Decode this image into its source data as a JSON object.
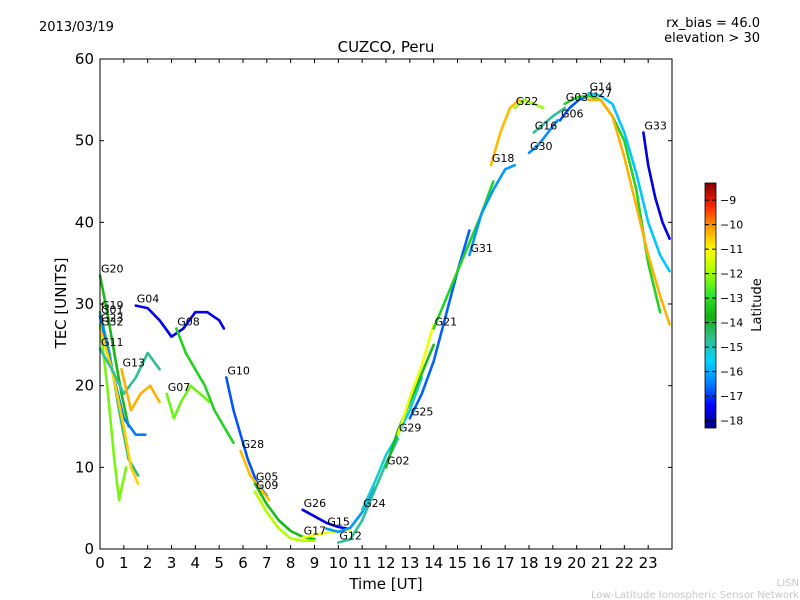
{
  "header": {
    "date": "2013/03/19",
    "rx_bias": "rx_bias = 46.0",
    "elevation": "elevation > 30"
  },
  "footer": {
    "org_short": "LISN",
    "org_long": "Low-Latitude Ionospheric Sensor Network"
  },
  "chart_data": {
    "type": "scatter",
    "title": "CUZCO, Peru",
    "xlabel": "Time [UT]",
    "ylabel": "TEC [UNITS]",
    "xlim": [
      0,
      24
    ],
    "ylim": [
      0,
      60
    ],
    "xticks": [
      "0",
      "1",
      "2",
      "3",
      "4",
      "5",
      "6",
      "7",
      "8",
      "9",
      "10",
      "11",
      "12",
      "13",
      "14",
      "15",
      "16",
      "17",
      "18",
      "19",
      "20",
      "21",
      "22",
      "23"
    ],
    "yticks": [
      "0",
      "10",
      "20",
      "30",
      "40",
      "50",
      "60"
    ],
    "colorbar": {
      "label": "Latitude",
      "min": -18.3,
      "max": -8.3,
      "ticks": [
        "-9",
        "-10",
        "-11",
        "-12",
        "-13",
        "-14",
        "-15",
        "-16",
        "-17",
        "-18"
      ],
      "colors": [
        "#00007f",
        "#0000ff",
        "#0080ff",
        "#00d4ff",
        "#30c090",
        "#12b012",
        "#2ee82e",
        "#a6ff00",
        "#ffff00",
        "#ff9c00",
        "#ff2200",
        "#7f0000"
      ]
    },
    "series": [
      {
        "name": "G20",
        "lat": -13.6,
        "points": [
          [
            0,
            33.5
          ],
          [
            0.3,
            29
          ],
          [
            0.6,
            24
          ],
          [
            0.9,
            19
          ],
          [
            1.2,
            15
          ]
        ]
      },
      {
        "name": "G19",
        "lat": -14.5,
        "points": [
          [
            0,
            29
          ],
          [
            0.4,
            24
          ],
          [
            0.8,
            17
          ],
          [
            1.2,
            11
          ],
          [
            1.6,
            9
          ]
        ]
      },
      {
        "name": "G01",
        "lat": -16.5,
        "points": [
          [
            0,
            28.5
          ],
          [
            0.5,
            22
          ],
          [
            1,
            16
          ],
          [
            1.5,
            14
          ],
          [
            1.9,
            14
          ]
        ]
      },
      {
        "name": "G23",
        "lat": -12.3,
        "points": [
          [
            0,
            27.5
          ],
          [
            0.3,
            20
          ],
          [
            0.6,
            11
          ],
          [
            0.8,
            6
          ],
          [
            1.1,
            10
          ]
        ]
      },
      {
        "name": "G32",
        "lat": -10.6,
        "points": [
          [
            0,
            27
          ],
          [
            0.5,
            22
          ],
          [
            1,
            15
          ],
          [
            1.3,
            10
          ],
          [
            1.6,
            8
          ]
        ]
      },
      {
        "name": "G11",
        "lat": -14.7,
        "points": [
          [
            0,
            24.5
          ],
          [
            0.5,
            22
          ],
          [
            1,
            19
          ],
          [
            1.5,
            21
          ],
          [
            2,
            24
          ],
          [
            2.5,
            22
          ]
        ]
      },
      {
        "name": "G13",
        "lat": -10.3,
        "points": [
          [
            0.9,
            22
          ],
          [
            1.3,
            17
          ],
          [
            1.7,
            19
          ],
          [
            2.1,
            20
          ],
          [
            2.5,
            18
          ]
        ]
      },
      {
        "name": "G04",
        "lat": -17.5,
        "points": [
          [
            1.5,
            29.8
          ],
          [
            2,
            29.5
          ],
          [
            2.5,
            28
          ],
          [
            3,
            26
          ],
          [
            3.5,
            27
          ],
          [
            4,
            29
          ],
          [
            4.5,
            29
          ],
          [
            5,
            28
          ],
          [
            5.2,
            27
          ]
        ]
      },
      {
        "name": "G07",
        "lat": -12.4,
        "points": [
          [
            2.8,
            19
          ],
          [
            3.1,
            16
          ],
          [
            3.4,
            18
          ],
          [
            3.8,
            20
          ],
          [
            4.2,
            19
          ],
          [
            4.6,
            18
          ]
        ]
      },
      {
        "name": "G08",
        "lat": -13.2,
        "points": [
          [
            3.2,
            27
          ],
          [
            3.6,
            24
          ],
          [
            4,
            22
          ],
          [
            4.4,
            20
          ],
          [
            4.8,
            17
          ],
          [
            5.2,
            15
          ],
          [
            5.6,
            13
          ]
        ]
      },
      {
        "name": "G10",
        "lat": -16.8,
        "points": [
          [
            5.3,
            21
          ],
          [
            5.6,
            17
          ],
          [
            5.9,
            14
          ],
          [
            6.2,
            11
          ],
          [
            6.6,
            8
          ],
          [
            7,
            6.5
          ]
        ]
      },
      {
        "name": "G28",
        "lat": -10.4,
        "points": [
          [
            5.9,
            12
          ],
          [
            6.3,
            9
          ],
          [
            6.7,
            7.5
          ],
          [
            7.1,
            6
          ]
        ]
      },
      {
        "name": "G05",
        "lat": -13.6,
        "points": [
          [
            6.5,
            8
          ],
          [
            7,
            5.5
          ],
          [
            7.5,
            3.5
          ],
          [
            8,
            2.2
          ],
          [
            8.5,
            1.5
          ],
          [
            9,
            1.2
          ]
        ]
      },
      {
        "name": "G09",
        "lat": -11.8,
        "points": [
          [
            6.5,
            7
          ],
          [
            7,
            4.5
          ],
          [
            7.5,
            2.5
          ],
          [
            8,
            1.3
          ],
          [
            8.5,
            1
          ],
          [
            9,
            1
          ]
        ]
      },
      {
        "name": "G26",
        "lat": -17.6,
        "points": [
          [
            8.5,
            4.8
          ],
          [
            9,
            4
          ],
          [
            9.5,
            3.2
          ],
          [
            10,
            2.7
          ],
          [
            10.4,
            2.5
          ]
        ]
      },
      {
        "name": "G17",
        "lat": -11.2,
        "points": [
          [
            8.5,
            1.4
          ],
          [
            9,
            1.7
          ],
          [
            9.5,
            2
          ],
          [
            10,
            2.2
          ],
          [
            10.5,
            2.4
          ]
        ]
      },
      {
        "name": "G15",
        "lat": -16.2,
        "points": [
          [
            9.5,
            2.5
          ],
          [
            10,
            2.1
          ],
          [
            10.5,
            2.6
          ],
          [
            11,
            4.5
          ],
          [
            11.5,
            7.5
          ]
        ]
      },
      {
        "name": "G12",
        "lat": -14.7,
        "points": [
          [
            10,
            0.8
          ],
          [
            10.5,
            1.2
          ],
          [
            11,
            3.5
          ],
          [
            11.5,
            7
          ],
          [
            12,
            10.5
          ],
          [
            12.5,
            13.5
          ]
        ]
      },
      {
        "name": "G24",
        "lat": -15.2,
        "points": [
          [
            11,
            4.8
          ],
          [
            11.5,
            8
          ],
          [
            12,
            11.5
          ],
          [
            12.5,
            14
          ],
          [
            13,
            17
          ],
          [
            13.5,
            21
          ]
        ]
      },
      {
        "name": "G02",
        "lat": -13.6,
        "points": [
          [
            12,
            10
          ],
          [
            12.5,
            14.5
          ],
          [
            13,
            18
          ],
          [
            13.5,
            21.5
          ],
          [
            14,
            25
          ]
        ]
      },
      {
        "name": "G29",
        "lat": -11.2,
        "points": [
          [
            12.5,
            14
          ],
          [
            13,
            18.5
          ],
          [
            13.5,
            22.5
          ],
          [
            14,
            27.5
          ]
        ]
      },
      {
        "name": "G25",
        "lat": -16.7,
        "points": [
          [
            13,
            16
          ],
          [
            13.5,
            19
          ],
          [
            14,
            23
          ],
          [
            14.5,
            28.5
          ],
          [
            15,
            34
          ],
          [
            15.5,
            39
          ]
        ]
      },
      {
        "name": "G21",
        "lat": -13.2,
        "points": [
          [
            14,
            27
          ],
          [
            14.5,
            30.5
          ],
          [
            15,
            34
          ],
          [
            15.5,
            37.5
          ],
          [
            16,
            41
          ],
          [
            16.5,
            45
          ]
        ]
      },
      {
        "name": "G31",
        "lat": -16.2,
        "points": [
          [
            15.5,
            36
          ],
          [
            16,
            41
          ],
          [
            16.5,
            44
          ],
          [
            17,
            46.5
          ],
          [
            17.4,
            47
          ]
        ]
      },
      {
        "name": "G18",
        "lat": -10.4,
        "points": [
          [
            16.4,
            47
          ],
          [
            16.8,
            51
          ],
          [
            17.2,
            54
          ],
          [
            17.6,
            55
          ]
        ]
      },
      {
        "name": "G22",
        "lat": -12.0,
        "points": [
          [
            17.4,
            54
          ],
          [
            17.8,
            55
          ],
          [
            18.2,
            54.5
          ],
          [
            18.6,
            54
          ]
        ]
      },
      {
        "name": "G30",
        "lat": -16.3,
        "points": [
          [
            18,
            48.5
          ],
          [
            18.4,
            49.5
          ],
          [
            18.8,
            51
          ],
          [
            19.2,
            52.5
          ]
        ]
      },
      {
        "name": "G16",
        "lat": -14.7,
        "points": [
          [
            18.2,
            51
          ],
          [
            18.6,
            52
          ],
          [
            19,
            53
          ],
          [
            19.5,
            54
          ]
        ]
      },
      {
        "name": "G06",
        "lat": -16.8,
        "points": [
          [
            19.3,
            52.5
          ],
          [
            19.7,
            54
          ],
          [
            20.1,
            55
          ],
          [
            20.5,
            55.5
          ]
        ]
      },
      {
        "name": "G03",
        "lat": -13.2,
        "points": [
          [
            19.5,
            54.5
          ],
          [
            20,
            55.3
          ],
          [
            20.5,
            55.5
          ],
          [
            21,
            55
          ],
          [
            21.5,
            53
          ],
          [
            22,
            50
          ],
          [
            22.5,
            44
          ],
          [
            23,
            35
          ],
          [
            23.5,
            29
          ]
        ]
      },
      {
        "name": "G14",
        "lat": -15.7,
        "points": [
          [
            20.5,
            55.8
          ],
          [
            21,
            55.5
          ],
          [
            21.5,
            54.5
          ],
          [
            22,
            51
          ],
          [
            22.5,
            46
          ],
          [
            23,
            40
          ],
          [
            23.5,
            36
          ],
          [
            23.9,
            34
          ]
        ]
      },
      {
        "name": "G27",
        "lat": -10.3,
        "points": [
          [
            20.5,
            55
          ],
          [
            21,
            55
          ],
          [
            21.5,
            53
          ],
          [
            22,
            48
          ],
          [
            22.5,
            42
          ],
          [
            23,
            36
          ],
          [
            23.5,
            31
          ],
          [
            23.9,
            27.5
          ]
        ]
      },
      {
        "name": "G33",
        "lat": -17.6,
        "points": [
          [
            22.8,
            51
          ],
          [
            23,
            47
          ],
          [
            23.3,
            43
          ],
          [
            23.6,
            40
          ],
          [
            23.9,
            38
          ]
        ]
      }
    ]
  }
}
